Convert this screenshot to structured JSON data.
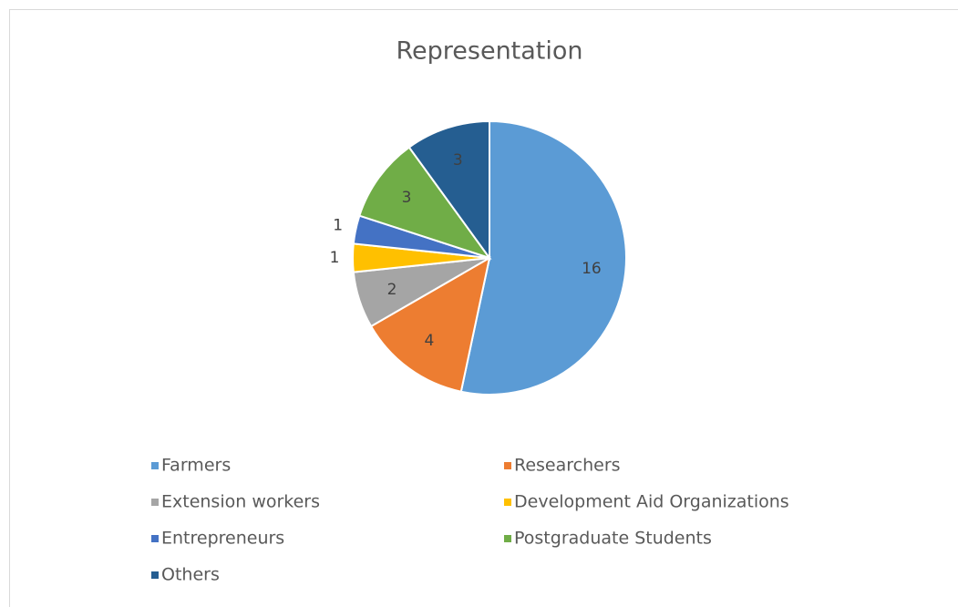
{
  "chart_data": {
    "type": "pie",
    "title": "Representation",
    "categories": [
      "Farmers",
      "Researchers",
      "Extension workers",
      "Development Aid Organizations",
      "Entrepreneurs",
      "Postgraduate Students",
      "Others"
    ],
    "values": [
      16,
      4,
      2,
      1,
      1,
      3,
      3
    ],
    "colors": [
      "#5b9bd5",
      "#ed7d31",
      "#a5a5a5",
      "#ffc000",
      "#4472c4",
      "#70ad47",
      "#255e91"
    ],
    "legend": "bottom"
  }
}
